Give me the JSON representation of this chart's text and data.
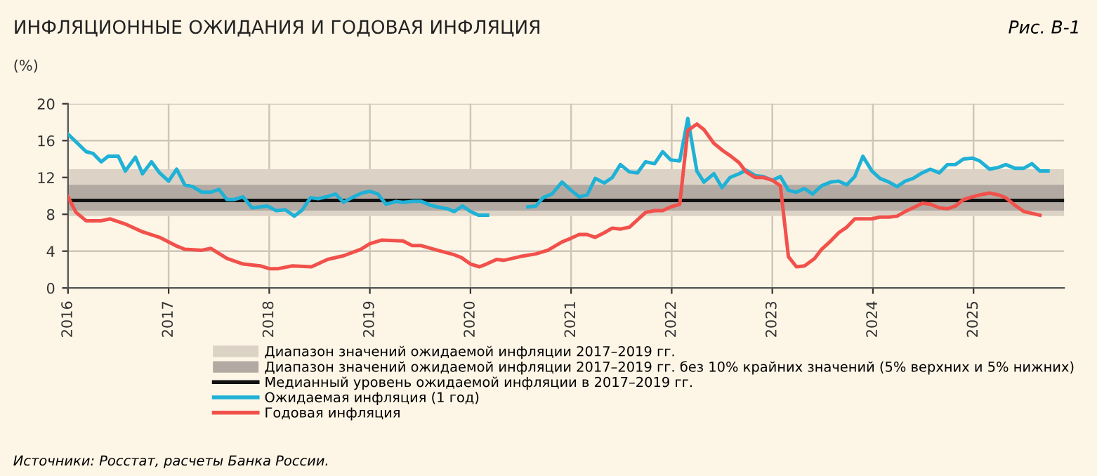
{
  "chart_data": {
    "type": "line",
    "title": "ИНФЛЯЦИОННЫЕ ОЖИДАНИЯ И ГОДОВАЯ ИНФЛЯЦИЯ",
    "ylabel": "(%)",
    "annotations": [
      "Рис. В-1",
      "Источники: Росстат, расчеты Банка России."
    ],
    "xlim": [
      2016,
      2025.9
    ],
    "xticks": [
      2016,
      2017,
      2018,
      2019,
      2020,
      2021,
      2022,
      2023,
      2024,
      2025
    ],
    "ylim": [
      0,
      20
    ],
    "yticks": [
      0,
      4,
      8,
      12,
      16,
      20
    ],
    "grid": true,
    "legend": "bottom",
    "marker": "none",
    "line_style": "solid",
    "bands": [
      {
        "axis": "y",
        "from": 7.8,
        "to": 12.9,
        "label": "Диапазон значений ожидаемой инфляции 2017–2019 гг.",
        "color": "#dcd3c6"
      },
      {
        "axis": "y",
        "from": 8.4,
        "to": 11.2,
        "label": "Диапазон значений ожидаемой инфляции 2017–2019 гг. без 10% крайних значений (5% верхних и 5% нижних)",
        "color": "#b2aaa2"
      }
    ],
    "ref_lines": [
      {
        "axis": "y",
        "value": 9.5,
        "label": "Медианный уровень ожидаемой инфляции в 2017–2019 гг.",
        "color": "#111111",
        "line_style": "solid"
      }
    ],
    "series": [
      {
        "name": "Ожидаемая инфляция (1 год)",
        "color": "#1fb1d6",
        "x": [
          2016.0,
          2016.18,
          2016.25,
          2016.33,
          2016.4,
          2016.5,
          2016.57,
          2016.67,
          2016.74,
          2016.83,
          2016.91,
          2017.0,
          2017.08,
          2017.16,
          2017.24,
          2017.33,
          2017.42,
          2017.5,
          2017.58,
          2017.65,
          2017.74,
          2017.83,
          2017.91,
          2017.98,
          2018.07,
          2018.16,
          2018.25,
          2018.33,
          2018.41,
          2018.49,
          2018.57,
          2018.66,
          2018.74,
          2018.82,
          2018.92,
          2019.0,
          2019.08,
          2019.16,
          2019.26,
          2019.33,
          2019.42,
          2019.51,
          2019.6,
          2019.67,
          2019.77,
          2019.84,
          2019.92,
          2020.0,
          2020.08,
          2020.17,
          2020.4,
          2020.57,
          2020.65,
          2020.72,
          2020.81,
          2020.91,
          2021.0,
          2021.08,
          2021.16,
          2021.24,
          2021.33,
          2021.41,
          2021.49,
          2021.58,
          2021.66,
          2021.74,
          2021.83,
          2021.91,
          2021.99,
          2022.08,
          2022.16,
          2022.25,
          2022.32,
          2022.42,
          2022.5,
          2022.58,
          2022.67,
          2022.74,
          2022.83,
          2022.91,
          2023.0,
          2023.08,
          2023.16,
          2023.24,
          2023.32,
          2023.4,
          2023.49,
          2023.58,
          2023.66,
          2023.74,
          2023.82,
          2023.9,
          2023.99,
          2024.07,
          2024.16,
          2024.24,
          2024.32,
          2024.4,
          2024.49,
          2024.57,
          2024.66,
          2024.74,
          2024.82,
          2024.9,
          2024.99,
          2025.06,
          2025.16,
          2025.25,
          2025.32,
          2025.41,
          2025.5,
          2025.58,
          2025.66,
          2025.74
        ],
        "values": [
          16.7,
          14.8,
          14.6,
          13.7,
          14.3,
          14.3,
          12.7,
          14.2,
          12.4,
          13.7,
          12.5,
          11.6,
          12.9,
          11.2,
          11.0,
          10.4,
          10.4,
          10.7,
          9.6,
          9.6,
          9.9,
          8.7,
          8.8,
          8.9,
          8.4,
          8.5,
          7.8,
          8.5,
          9.8,
          9.7,
          9.9,
          10.2,
          9.3,
          9.8,
          10.3,
          10.5,
          10.2,
          9.1,
          9.4,
          9.3,
          9.4,
          9.4,
          9.0,
          8.8,
          8.6,
          8.3,
          8.9,
          8.3,
          7.9,
          7.9,
          null,
          8.8,
          8.9,
          9.8,
          10.2,
          11.5,
          10.6,
          9.9,
          10.1,
          11.9,
          11.4,
          12.0,
          13.4,
          12.6,
          12.5,
          13.7,
          13.5,
          14.8,
          13.9,
          13.8,
          18.4,
          12.7,
          11.5,
          12.4,
          10.9,
          12.0,
          12.4,
          12.8,
          12.2,
          12.1,
          11.7,
          12.1,
          10.6,
          10.4,
          10.8,
          10.2,
          11.1,
          11.5,
          11.6,
          11.2,
          12.1,
          14.3,
          12.7,
          11.9,
          11.5,
          11.0,
          11.6,
          11.9,
          12.5,
          12.9,
          12.5,
          13.4,
          13.4,
          14.0,
          14.1,
          13.8,
          12.9,
          13.1,
          13.4,
          13.0,
          13.0,
          13.5,
          12.7,
          12.7
        ]
      },
      {
        "name": "Годовая инфляция",
        "color": "#f2514b",
        "x": [
          2016.0,
          2016.08,
          2016.18,
          2016.33,
          2016.42,
          2016.58,
          2016.74,
          2016.91,
          2017.07,
          2017.16,
          2017.33,
          2017.42,
          2017.58,
          2017.74,
          2017.91,
          2018.0,
          2018.09,
          2018.23,
          2018.42,
          2018.58,
          2018.74,
          2018.91,
          2019.0,
          2019.12,
          2019.33,
          2019.42,
          2019.51,
          2019.67,
          2019.84,
          2019.91,
          2020.0,
          2020.09,
          2020.16,
          2020.26,
          2020.33,
          2020.49,
          2020.65,
          2020.77,
          2020.91,
          2021.0,
          2021.08,
          2021.16,
          2021.24,
          2021.33,
          2021.41,
          2021.49,
          2021.58,
          2021.66,
          2021.74,
          2021.83,
          2021.91,
          2021.99,
          2022.08,
          2022.16,
          2022.25,
          2022.32,
          2022.42,
          2022.51,
          2022.59,
          2022.67,
          2022.74,
          2022.83,
          2022.91,
          2023.0,
          2023.08,
          2023.16,
          2023.24,
          2023.32,
          2023.42,
          2023.49,
          2023.58,
          2023.66,
          2023.74,
          2023.82,
          2023.9,
          2023.99,
          2024.07,
          2024.16,
          2024.24,
          2024.32,
          2024.4,
          2024.49,
          2024.57,
          2024.66,
          2024.74,
          2024.82,
          2024.9,
          2024.99,
          2025.06,
          2025.16,
          2025.25,
          2025.32,
          2025.41,
          2025.5,
          2025.58,
          2025.66
        ],
        "values": [
          9.9,
          8.2,
          7.3,
          7.3,
          7.5,
          6.9,
          6.1,
          5.5,
          4.6,
          4.2,
          4.1,
          4.3,
          3.2,
          2.6,
          2.4,
          2.1,
          2.1,
          2.4,
          2.3,
          3.1,
          3.5,
          4.2,
          4.8,
          5.2,
          5.1,
          4.6,
          4.6,
          4.1,
          3.6,
          3.3,
          2.6,
          2.3,
          2.6,
          3.1,
          3.0,
          3.4,
          3.7,
          4.1,
          5.0,
          5.4,
          5.8,
          5.8,
          5.5,
          6.0,
          6.5,
          6.4,
          6.6,
          7.4,
          8.2,
          8.4,
          8.4,
          8.8,
          9.1,
          17.1,
          17.8,
          17.2,
          15.7,
          14.9,
          14.3,
          13.6,
          12.6,
          12.0,
          12.0,
          11.7,
          11.1,
          3.4,
          2.3,
          2.4,
          3.2,
          4.2,
          5.1,
          6.0,
          6.6,
          7.5,
          7.5,
          7.5,
          7.7,
          7.7,
          7.8,
          8.3,
          8.7,
          9.2,
          9.1,
          8.7,
          8.6,
          8.9,
          9.6,
          9.9,
          10.1,
          10.3,
          10.1,
          9.8,
          9.0,
          8.3,
          8.1,
          7.9
        ]
      }
    ]
  }
}
